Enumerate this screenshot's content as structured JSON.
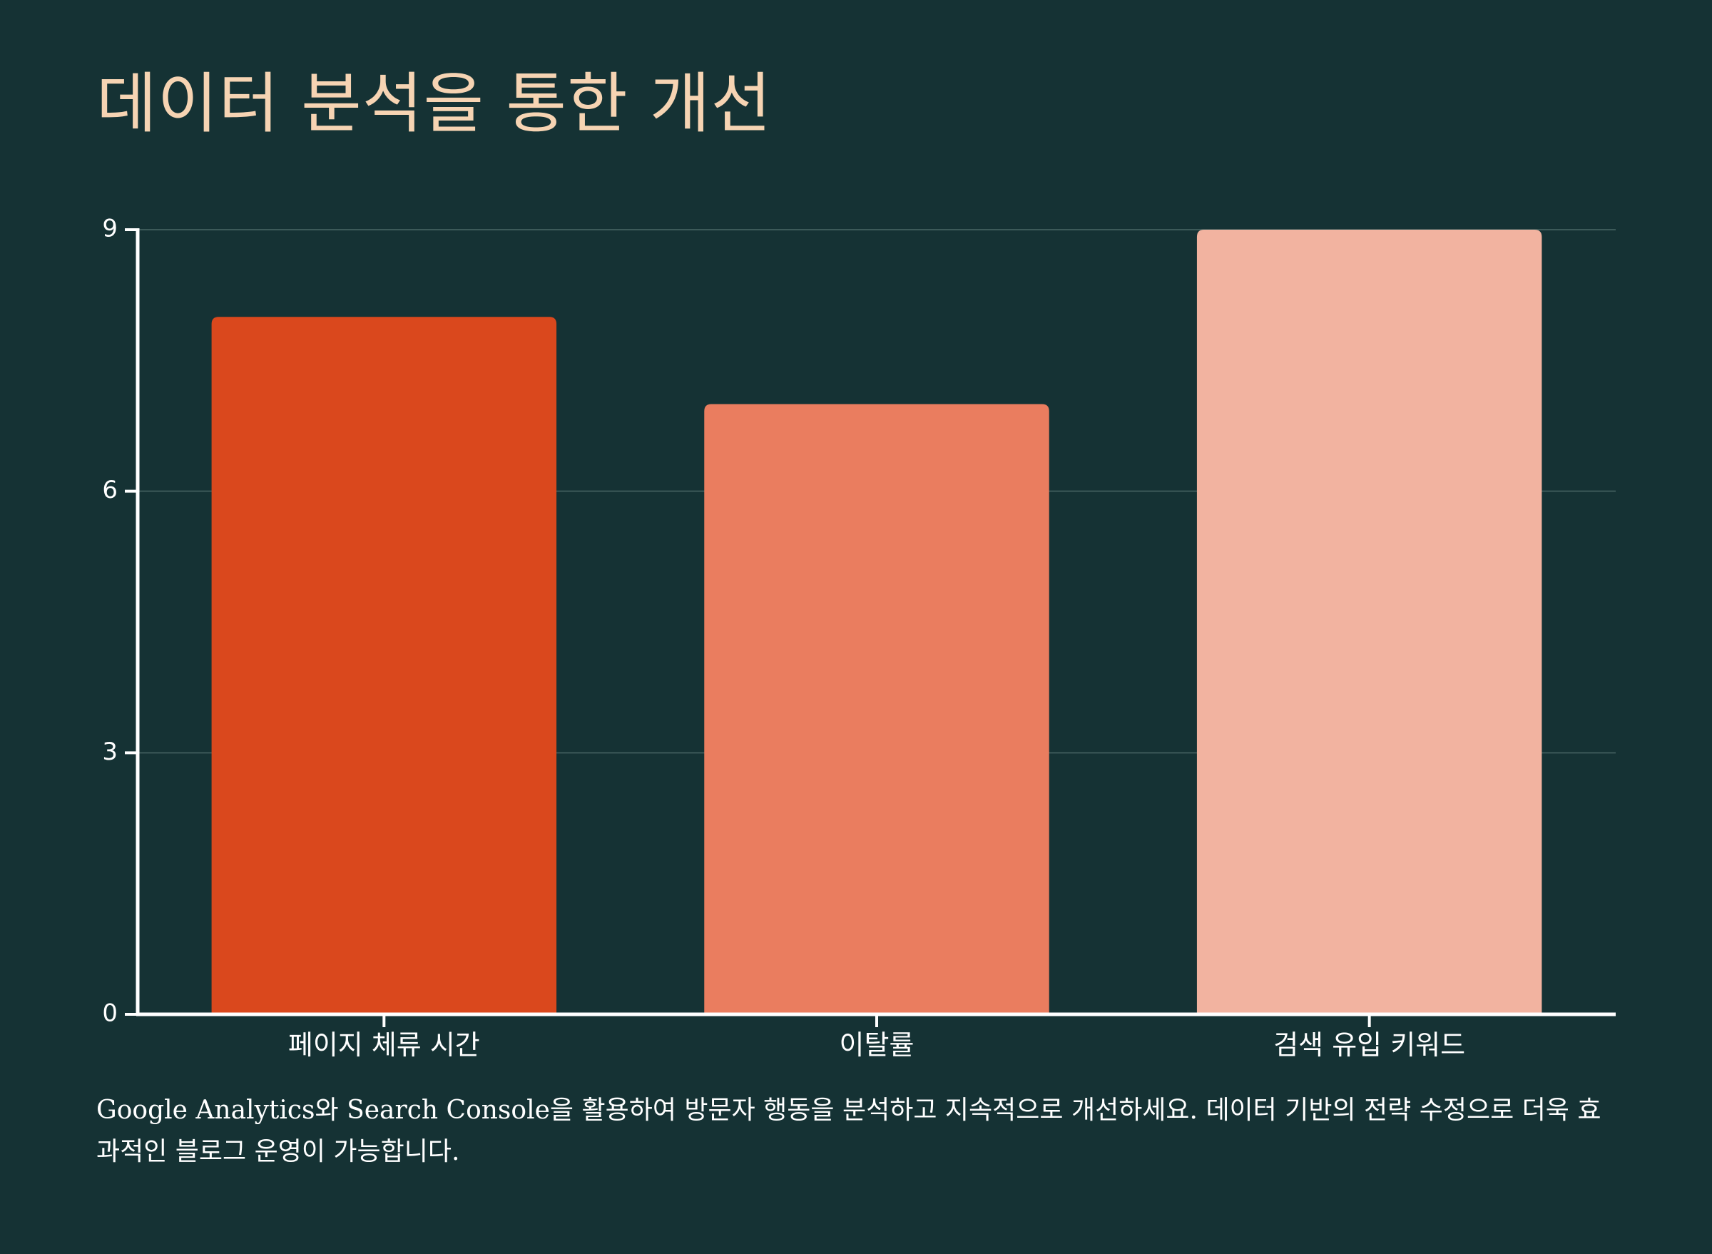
{
  "title": "데이터 분석을 통한 개선",
  "caption": "Google Analytics와 Search Console을 활용하여 방문자 행동을 분석하고 지속적으로 개선하세요. 데이터 기반의 전략 수정으로 더욱 효과적인 블로그 운영이 가능합니다.",
  "colors": {
    "background": "#153234",
    "title": "#f6d4b3",
    "axis": "#ffffff",
    "grid": "#3c5a59"
  },
  "chart_data": {
    "type": "bar",
    "title": "",
    "xlabel": "",
    "ylabel": "",
    "categories": [
      "페이지 체류 시간",
      "이탈률",
      "검색 유입 키워드"
    ],
    "values": [
      8,
      7,
      9
    ],
    "bar_colors": [
      "#da481d",
      "#ea7d5f",
      "#f2b3a0"
    ],
    "ylim": [
      0,
      9
    ],
    "yticks": [
      0,
      3,
      6,
      9
    ],
    "grid": true
  }
}
